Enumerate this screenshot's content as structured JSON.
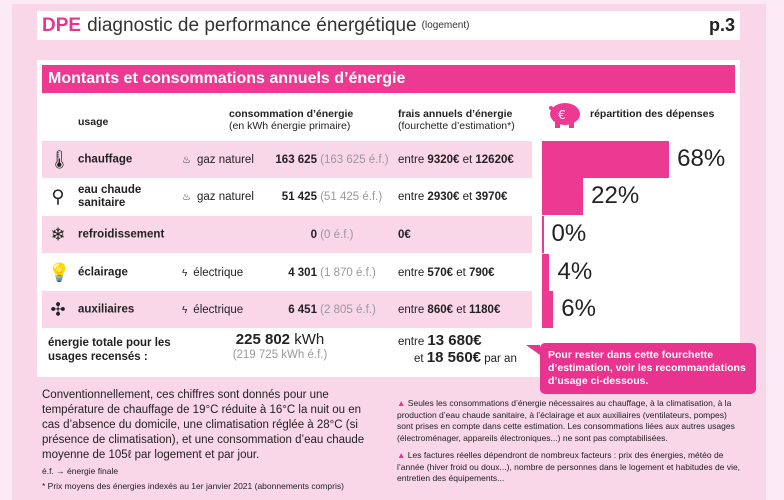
{
  "header": {
    "brand": "DPE",
    "title": "diagnostic de performance énergétique",
    "subtitle": "(logement)",
    "page": "p.3"
  },
  "section": {
    "title": "Montants et consommations annuels d’énergie"
  },
  "columns": {
    "usage": "usage",
    "consumption": "consommation d’énergie",
    "consumption_sub": "(en kWh énergie primaire)",
    "costs": "frais annuels d’énergie",
    "costs_sub": "(fourchette d’estimation*)",
    "split": "répartition des dépenses"
  },
  "rows": [
    {
      "icon": "thermometer-icon",
      "usage": "chauffage",
      "fuel_icon": "flame-icon",
      "fuel": "gaz naturel",
      "cons": "163 625",
      "cons_ef": "(163 625 é.f.)",
      "cost_pre": "entre ",
      "cost_min": "9320€",
      "cost_mid": " et ",
      "cost_max": "12620€",
      "pct_label": "68%",
      "pct": 68
    },
    {
      "icon": "faucet-icon",
      "usage": "eau chaude sanitaire",
      "fuel_icon": "flame-icon",
      "fuel": "gaz naturel",
      "cons": "51 425",
      "cons_ef": "(51 425 é.f.)",
      "cost_pre": "entre ",
      "cost_min": "2930€",
      "cost_mid": " et ",
      "cost_max": "3970€",
      "pct_label": "22%",
      "pct": 22
    },
    {
      "icon": "snowflake-icon",
      "usage": "refroidissement",
      "fuel_icon": "",
      "fuel": "",
      "cons": "0",
      "cons_ef": "(0 é.f.)",
      "cost_pre": "",
      "cost_min": "0€",
      "cost_mid": "",
      "cost_max": "",
      "pct_label": "0%",
      "pct": 0
    },
    {
      "icon": "lightbulb-icon",
      "usage": "éclairage",
      "fuel_icon": "lightning-icon",
      "fuel": "électrique",
      "cons": "4 301",
      "cons_ef": "(1 870 é.f.)",
      "cost_pre": "entre ",
      "cost_min": "570€",
      "cost_mid": " et ",
      "cost_max": "790€",
      "pct_label": "4%",
      "pct": 4
    },
    {
      "icon": "fan-icon",
      "usage": "auxiliaires",
      "fuel_icon": "lightning-icon",
      "fuel": "électrique",
      "cons": "6 451",
      "cons_ef": "(2 805 é.f.)",
      "cost_pre": "entre ",
      "cost_min": "860€",
      "cost_mid": " et ",
      "cost_max": "1180€",
      "pct_label": "6%",
      "pct": 6
    }
  ],
  "total": {
    "label": "énergie totale pour les usages recensés :",
    "cons": "225 802",
    "unit": " kWh",
    "cons_ef": "(219 725 kWh é.f.)",
    "pre": "entre ",
    "min": "13 680€",
    "mid": "et ",
    "max": "18 560€",
    "post": " par an"
  },
  "tip": "Pour rester dans cette fourchette d’estimation, voir les recommandations d’usage ci-dessous.",
  "footer": {
    "text": "Conventionnellement, ces chiffres sont donnés pour une température de chauffage de 19°C réduite à 16°C la nuit ou en cas d’absence du domicile, une climatisation réglée à 28°C (si présence de climatisation), et une consommation d’eau chaude moyenne de 105ℓ par logement et par jour.",
    "ef": "é.f. → énergie finale",
    "prices": "* Prix moyens des énergies indexés au 1er janvier 2021 (abonnements compris)"
  },
  "notes": [
    "Seules les consommations d’énergie nécessaires au chauffage, à la climatisation, à la production d’eau chaude sanitaire, à l’éclairage et aux auxiliaires (ventilateurs, pompes) sont prises en compte dans cette estimation.  Les consommations liées aux autres usages (électroménager, appareils électroniques...) ne sont pas comptabilisées.",
    "Les factures réelles dépendront de nombreux facteurs : prix des énergies, météo de l’année (hiver froid ou doux...), nombre de personnes dans le logement et habitudes de vie, entretien des équipements..."
  ],
  "colors": {
    "accent": "#ec3a93",
    "pink_bg": "#f9d6e8"
  }
}
